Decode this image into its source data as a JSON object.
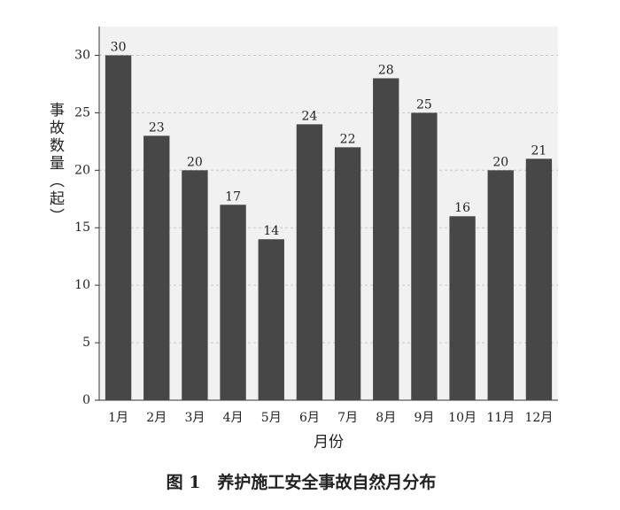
{
  "chart_data": {
    "type": "bar",
    "caption": "图 1　养护施工安全事故自然月分布",
    "x_label": "月份",
    "y_label": "事故数量（起）",
    "categories": [
      "1月",
      "2月",
      "3月",
      "4月",
      "5月",
      "6月",
      "7月",
      "8月",
      "9月",
      "10月",
      "11月",
      "12月"
    ],
    "values": [
      30,
      23,
      20,
      17,
      14,
      24,
      22,
      28,
      25,
      16,
      20,
      21
    ],
    "color": "#474747",
    "ylim": [
      0,
      32.5
    ],
    "yticks": [
      0,
      5,
      10,
      15,
      20,
      25,
      30
    ],
    "grid": true
  }
}
